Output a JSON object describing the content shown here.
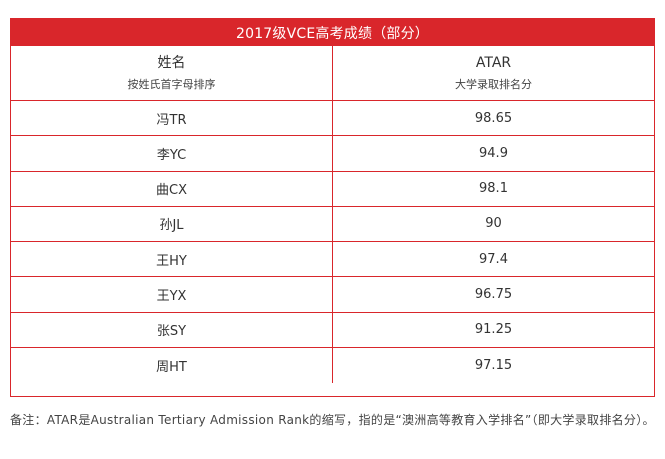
{
  "table": {
    "title": "2017级VCE高考成绩（部分）",
    "headers": [
      {
        "main": "姓名",
        "sub": "按姓氏首字母排序"
      },
      {
        "main": "ATAR",
        "sub": "大学录取排名分"
      }
    ],
    "rows": [
      {
        "name": "冯TR",
        "atar": "98.65"
      },
      {
        "name": "李YC",
        "atar": "94.9"
      },
      {
        "name": "曲CX",
        "atar": "98.1"
      },
      {
        "name": "孙JL",
        "atar": "90"
      },
      {
        "name": "王HY",
        "atar": "97.4"
      },
      {
        "name": "王YX",
        "atar": "96.75"
      },
      {
        "name": "张SY",
        "atar": "91.25"
      },
      {
        "name": "周HT",
        "atar": "97.15"
      }
    ],
    "accent_color": "#d9262b"
  },
  "footnote": "备注：ATAR是Australian Tertiary Admission Rank的缩写，指的是“澳洲高等教育入学排名”（即大学录取排名分）。"
}
